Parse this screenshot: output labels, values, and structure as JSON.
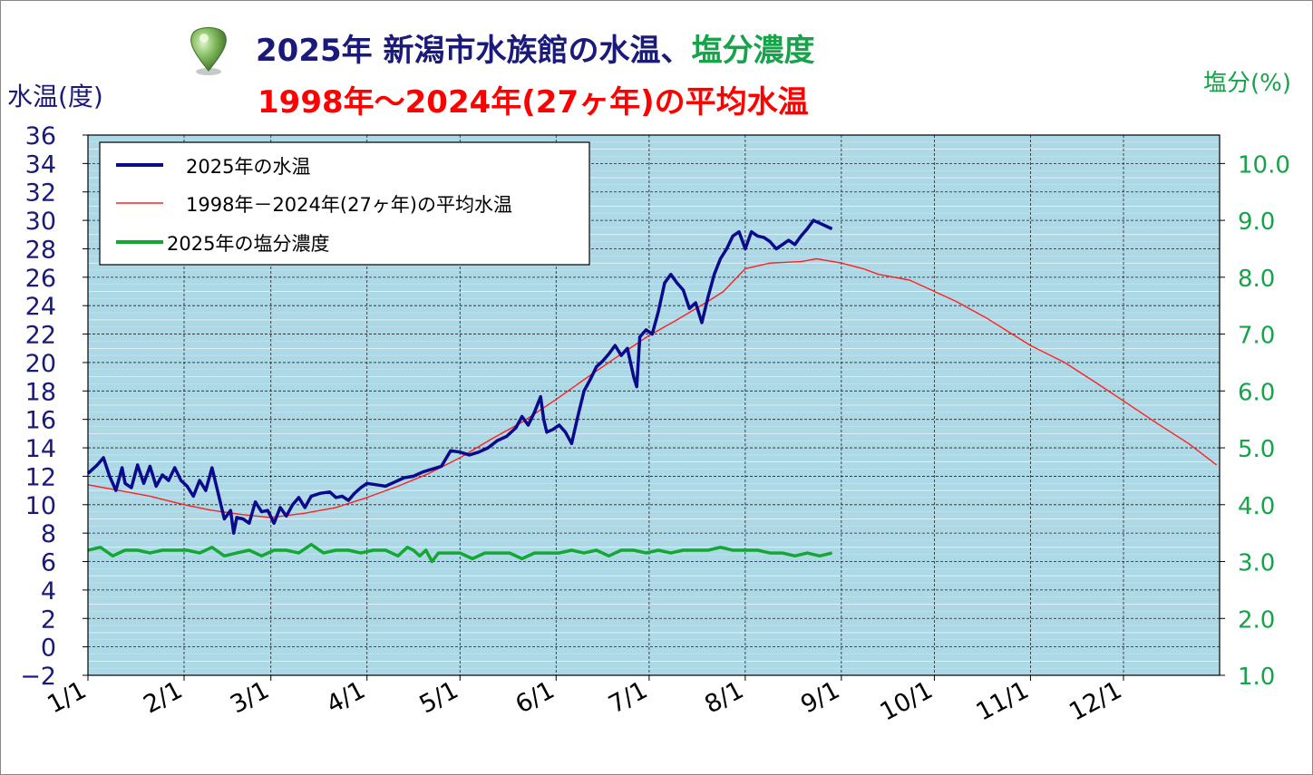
{
  "title": {
    "line1_part1": "2025年 新潟市水族館の水温、",
    "line1_part2": "塩分濃度",
    "line2": "1998年～2024年(27ヶ年)の平均水温",
    "color_part1": "#1a1a7a",
    "color_part2": "#16a34a",
    "color_line2": "#ff0000"
  },
  "axes": {
    "y_left_label": "水温(度)",
    "y_right_label": "塩分(%)",
    "y_left_ticks": [
      "36",
      "34",
      "32",
      "30",
      "28",
      "26",
      "24",
      "22",
      "20",
      "18",
      "16",
      "14",
      "12",
      "10",
      "8",
      "6",
      "4",
      "2",
      "0",
      "−2"
    ],
    "y_right_ticks": [
      "10.0",
      "9.0",
      "8.0",
      "7.0",
      "6.0",
      "5.0",
      "4.0",
      "3.0",
      "2.0",
      "1.0"
    ],
    "x_ticks": [
      "1/1",
      "2/1",
      "3/1",
      "4/1",
      "5/1",
      "6/1",
      "7/1",
      "8/1",
      "9/1",
      "10/1",
      "11/1",
      "12/1"
    ]
  },
  "legend": {
    "items": [
      {
        "label": "2025年の水温",
        "color": "#0a0a8c"
      },
      {
        "label": "1998年－2024年(27ヶ年)の平均水温",
        "color": "#ff2020"
      },
      {
        "label": "2025年の塩分濃度",
        "color": "#12a832"
      }
    ]
  },
  "chart_data": {
    "type": "line",
    "x_unit": "day-of-year",
    "x_ticks_day": [
      0,
      31,
      59,
      90,
      120,
      151,
      181,
      212,
      243,
      273,
      304,
      334
    ],
    "ylim_left": [
      -2,
      36
    ],
    "ylim_right": [
      1.0,
      10.5
    ],
    "plot_bg": "#add8e6",
    "series": [
      {
        "name": "2025年の水温",
        "axis": "left",
        "color": "#0a0a8c",
        "points": [
          [
            0,
            12.2
          ],
          [
            3,
            12.8
          ],
          [
            5,
            13.3
          ],
          [
            7,
            12.0
          ],
          [
            9,
            11.0
          ],
          [
            11,
            12.6
          ],
          [
            12,
            11.5
          ],
          [
            14,
            11.2
          ],
          [
            16,
            12.8
          ],
          [
            18,
            11.5
          ],
          [
            20,
            12.7
          ],
          [
            22,
            11.3
          ],
          [
            24,
            12.1
          ],
          [
            26,
            11.7
          ],
          [
            28,
            12.6
          ],
          [
            30,
            11.7
          ],
          [
            32,
            11.3
          ],
          [
            34,
            10.6
          ],
          [
            36,
            11.7
          ],
          [
            38,
            11.0
          ],
          [
            40,
            12.6
          ],
          [
            42,
            10.8
          ],
          [
            44,
            9.0
          ],
          [
            46,
            9.6
          ],
          [
            47,
            8.0
          ],
          [
            48,
            9.1
          ],
          [
            50,
            9.0
          ],
          [
            52,
            8.7
          ],
          [
            54,
            10.2
          ],
          [
            56,
            9.5
          ],
          [
            58,
            9.6
          ],
          [
            60,
            8.7
          ],
          [
            62,
            9.8
          ],
          [
            64,
            9.2
          ],
          [
            66,
            10.0
          ],
          [
            68,
            10.5
          ],
          [
            70,
            9.8
          ],
          [
            72,
            10.6
          ],
          [
            75,
            10.8
          ],
          [
            78,
            10.9
          ],
          [
            80,
            10.5
          ],
          [
            82,
            10.6
          ],
          [
            84,
            10.3
          ],
          [
            86,
            10.8
          ],
          [
            88,
            11.2
          ],
          [
            90,
            11.5
          ],
          [
            93,
            11.4
          ],
          [
            96,
            11.3
          ],
          [
            99,
            11.6
          ],
          [
            102,
            11.9
          ],
          [
            105,
            12.0
          ],
          [
            108,
            12.3
          ],
          [
            111,
            12.5
          ],
          [
            114,
            12.7
          ],
          [
            117,
            13.8
          ],
          [
            120,
            13.7
          ],
          [
            123,
            13.5
          ],
          [
            126,
            13.7
          ],
          [
            129,
            14.0
          ],
          [
            132,
            14.5
          ],
          [
            135,
            14.8
          ],
          [
            138,
            15.4
          ],
          [
            140,
            16.2
          ],
          [
            142,
            15.6
          ],
          [
            144,
            16.5
          ],
          [
            146,
            17.6
          ],
          [
            147,
            16.0
          ],
          [
            148,
            15.1
          ],
          [
            150,
            15.3
          ],
          [
            152,
            15.6
          ],
          [
            154,
            15.1
          ],
          [
            156,
            14.3
          ],
          [
            158,
            16.2
          ],
          [
            160,
            18.0
          ],
          [
            162,
            18.8
          ],
          [
            164,
            19.7
          ],
          [
            166,
            20.1
          ],
          [
            168,
            20.6
          ],
          [
            170,
            21.2
          ],
          [
            172,
            20.5
          ],
          [
            174,
            21.0
          ],
          [
            176,
            19.0
          ],
          [
            177,
            18.3
          ],
          [
            178,
            21.8
          ],
          [
            180,
            22.3
          ],
          [
            182,
            22.0
          ],
          [
            184,
            23.6
          ],
          [
            186,
            25.6
          ],
          [
            188,
            26.2
          ],
          [
            190,
            25.6
          ],
          [
            192,
            25.1
          ],
          [
            194,
            23.8
          ],
          [
            196,
            24.2
          ],
          [
            198,
            22.8
          ],
          [
            200,
            24.6
          ],
          [
            202,
            26.2
          ],
          [
            204,
            27.3
          ],
          [
            206,
            28.0
          ],
          [
            208,
            28.9
          ],
          [
            210,
            29.2
          ],
          [
            212,
            28.0
          ],
          [
            214,
            29.2
          ],
          [
            216,
            28.9
          ],
          [
            218,
            28.8
          ],
          [
            220,
            28.5
          ],
          [
            222,
            28.0
          ],
          [
            224,
            28.3
          ],
          [
            226,
            28.6
          ],
          [
            228,
            28.3
          ],
          [
            230,
            28.9
          ],
          [
            232,
            29.4
          ],
          [
            234,
            30.0
          ],
          [
            236,
            29.8
          ],
          [
            238,
            29.6
          ],
          [
            240,
            29.4
          ]
        ]
      },
      {
        "name": "1998年－2024年(27ヶ年)の平均水温",
        "axis": "left",
        "color": "#ff2020",
        "points": [
          [
            0,
            11.4
          ],
          [
            10,
            11.0
          ],
          [
            20,
            10.6
          ],
          [
            31,
            10.0
          ],
          [
            40,
            9.6
          ],
          [
            50,
            9.3
          ],
          [
            59,
            9.1
          ],
          [
            70,
            9.4
          ],
          [
            80,
            9.8
          ],
          [
            90,
            10.5
          ],
          [
            100,
            11.3
          ],
          [
            110,
            12.2
          ],
          [
            120,
            13.3
          ],
          [
            130,
            14.6
          ],
          [
            140,
            15.8
          ],
          [
            151,
            17.4
          ],
          [
            160,
            18.8
          ],
          [
            170,
            20.3
          ],
          [
            181,
            21.9
          ],
          [
            190,
            23.0
          ],
          [
            200,
            24.3
          ],
          [
            205,
            25.0
          ],
          [
            212,
            26.6
          ],
          [
            220,
            27.0
          ],
          [
            230,
            27.1
          ],
          [
            235,
            27.3
          ],
          [
            243,
            27.0
          ],
          [
            250,
            26.6
          ],
          [
            255,
            26.2
          ],
          [
            265,
            25.8
          ],
          [
            273,
            25.0
          ],
          [
            280,
            24.3
          ],
          [
            290,
            23.1
          ],
          [
            304,
            21.2
          ],
          [
            315,
            20.0
          ],
          [
            325,
            18.6
          ],
          [
            334,
            17.3
          ],
          [
            345,
            15.7
          ],
          [
            355,
            14.3
          ],
          [
            364,
            12.8
          ]
        ]
      },
      {
        "name": "2025年の塩分濃度",
        "axis": "right",
        "color": "#12a832",
        "points": [
          [
            0,
            3.2
          ],
          [
            4,
            3.25
          ],
          [
            8,
            3.1
          ],
          [
            12,
            3.2
          ],
          [
            16,
            3.2
          ],
          [
            20,
            3.15
          ],
          [
            24,
            3.2
          ],
          [
            28,
            3.2
          ],
          [
            32,
            3.2
          ],
          [
            36,
            3.15
          ],
          [
            40,
            3.25
          ],
          [
            44,
            3.1
          ],
          [
            48,
            3.15
          ],
          [
            52,
            3.2
          ],
          [
            56,
            3.1
          ],
          [
            60,
            3.2
          ],
          [
            64,
            3.2
          ],
          [
            68,
            3.15
          ],
          [
            72,
            3.3
          ],
          [
            76,
            3.15
          ],
          [
            80,
            3.2
          ],
          [
            84,
            3.2
          ],
          [
            88,
            3.15
          ],
          [
            92,
            3.2
          ],
          [
            96,
            3.2
          ],
          [
            100,
            3.1
          ],
          [
            103,
            3.25
          ],
          [
            105,
            3.2
          ],
          [
            107,
            3.1
          ],
          [
            109,
            3.2
          ],
          [
            111,
            3.0
          ],
          [
            113,
            3.15
          ],
          [
            116,
            3.15
          ],
          [
            120,
            3.15
          ],
          [
            124,
            3.05
          ],
          [
            128,
            3.15
          ],
          [
            132,
            3.15
          ],
          [
            136,
            3.15
          ],
          [
            140,
            3.05
          ],
          [
            144,
            3.15
          ],
          [
            148,
            3.15
          ],
          [
            152,
            3.15
          ],
          [
            156,
            3.2
          ],
          [
            160,
            3.15
          ],
          [
            164,
            3.2
          ],
          [
            168,
            3.1
          ],
          [
            172,
            3.2
          ],
          [
            176,
            3.2
          ],
          [
            180,
            3.15
          ],
          [
            184,
            3.2
          ],
          [
            188,
            3.15
          ],
          [
            192,
            3.2
          ],
          [
            196,
            3.2
          ],
          [
            200,
            3.2
          ],
          [
            204,
            3.25
          ],
          [
            208,
            3.2
          ],
          [
            212,
            3.2
          ],
          [
            216,
            3.2
          ],
          [
            220,
            3.15
          ],
          [
            224,
            3.15
          ],
          [
            228,
            3.1
          ],
          [
            232,
            3.15
          ],
          [
            236,
            3.1
          ],
          [
            240,
            3.15
          ]
        ]
      }
    ]
  }
}
